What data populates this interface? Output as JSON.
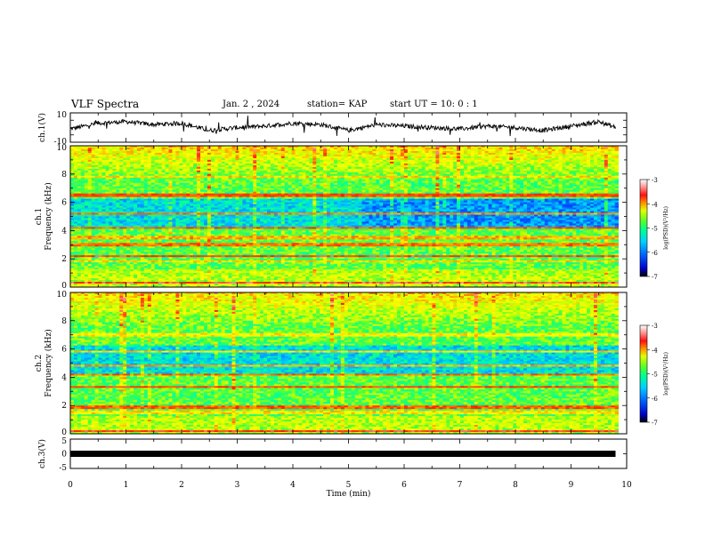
{
  "header": {
    "title": "VLF Spectra",
    "date": "Jan. 2 , 2024",
    "station": "station= KAP",
    "start_ut": "start UT = 10: 0 : 1"
  },
  "colors": {
    "spectrogram_scale": [
      "#0000c8",
      "#0050ff",
      "#00c8ff",
      "#00ffa0",
      "#40ff40",
      "#c8ff00",
      "#ffff00",
      "#ff9000",
      "#ff2000",
      "#ff9090",
      "#ffffff"
    ],
    "line": "#000000"
  },
  "chart_data": [
    {
      "type": "line",
      "panel": "waveform-ch1",
      "ylabel": "ch.1(V)",
      "ylim": [
        -10,
        10
      ],
      "y_ticks": [
        "10",
        "-10"
      ],
      "x": [
        0,
        0.5,
        1,
        1.5,
        2,
        2.5,
        3,
        3.5,
        4,
        4.5,
        5,
        5.5,
        6,
        6.5,
        7,
        7.5,
        8,
        8.5,
        9,
        9.5,
        9.8
      ],
      "values": [
        -1,
        3,
        4,
        2,
        3,
        -2,
        0,
        1,
        3,
        2,
        -2,
        2,
        1,
        0,
        -1,
        1,
        0,
        -2,
        1,
        4,
        0
      ]
    },
    {
      "type": "heatmap",
      "panel": "spectrogram-ch1",
      "ylabel_channel": "ch.1",
      "ylabel": "Frequency (kHz)",
      "ylim": [
        0,
        10
      ],
      "y_ticks": [
        "0",
        "2",
        "4",
        "6",
        "8",
        "10"
      ],
      "xlim": [
        0,
        10
      ],
      "colorbar": {
        "label": "log(PSD)(V²/Hz)",
        "range": [
          -7,
          -3
        ],
        "ticks": [
          "-3",
          "-4",
          "-5",
          "-6",
          "-7"
        ]
      },
      "bands_khz": [
        {
          "f": 0.3,
          "level": -3.2
        },
        {
          "f": 1.8,
          "level": -4.0
        },
        {
          "f": 2.2,
          "level": -3.3
        },
        {
          "f": 3.0,
          "level": -3.6
        },
        {
          "f": 3.5,
          "level": -3.8
        },
        {
          "f": 4.2,
          "level": -3.5
        },
        {
          "f": 5.2,
          "level": -3.7
        },
        {
          "f": 6.5,
          "level": -3.4
        },
        {
          "f": 7.8,
          "level": -4.0
        }
      ]
    },
    {
      "type": "heatmap",
      "panel": "spectrogram-ch2",
      "ylabel_channel": "ch.2",
      "ylabel": "Frequency (kHz)",
      "ylim": [
        0,
        10
      ],
      "y_ticks": [
        "0",
        "2",
        "4",
        "6",
        "8",
        "10"
      ],
      "xlim": [
        0,
        10
      ],
      "colorbar": {
        "label": "log(PSD)(V²/Hz)",
        "range": [
          -7,
          -3
        ],
        "ticks": [
          "-3",
          "-4",
          "-5",
          "-6",
          "-7"
        ]
      },
      "bands_khz": [
        {
          "f": 0.2,
          "level": -3.3
        },
        {
          "f": 1.5,
          "level": -4.0
        },
        {
          "f": 1.9,
          "level": -3.5
        },
        {
          "f": 3.3,
          "level": -3.4
        },
        {
          "f": 4.2,
          "level": -3.6
        },
        {
          "f": 4.8,
          "level": -3.8
        },
        {
          "f": 5.8,
          "level": -4.0
        },
        {
          "f": 7.0,
          "level": -4.1
        }
      ]
    },
    {
      "type": "line",
      "panel": "waveform-ch3",
      "ylabel": "ch.3(V)",
      "ylim": [
        -5,
        5
      ],
      "y_ticks": [
        "5",
        "0",
        "-5"
      ],
      "x": [
        0,
        9.8
      ],
      "values": [
        0,
        0
      ]
    }
  ],
  "x_axis": {
    "label": "Time (min)",
    "range": [
      0,
      10
    ],
    "ticks": [
      "0",
      "1",
      "2",
      "3",
      "4",
      "5",
      "6",
      "7",
      "8",
      "9",
      "10"
    ]
  }
}
